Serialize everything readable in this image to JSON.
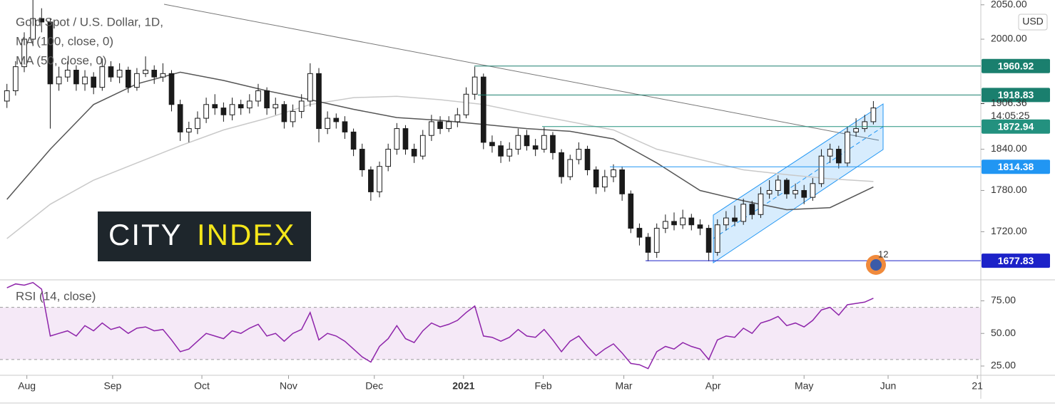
{
  "chart_data": [
    {
      "type": "candlestick",
      "title": "Gold Spot / U.S. Dollar, 1D,",
      "currency": "USD",
      "up_color": "#ffffff",
      "down_color": "#1a1a1a",
      "open": [
        1910,
        1925,
        1960,
        2000,
        2030,
        2025,
        1935,
        1945,
        1955,
        1935,
        1945,
        1930,
        1960,
        1945,
        1955,
        1930,
        1950,
        1955,
        1945,
        1950,
        1905,
        1865,
        1870,
        1885,
        1905,
        1900,
        1890,
        1905,
        1900,
        1910,
        1925,
        1900,
        1905,
        1880,
        1895,
        1910,
        1950,
        1870,
        1885,
        1880,
        1865,
        1840,
        1810,
        1778,
        1815,
        1840,
        1870,
        1840,
        1830,
        1860,
        1880,
        1870,
        1880,
        1890,
        1920,
        1945,
        1850,
        1845,
        1830,
        1840,
        1860,
        1845,
        1840,
        1860,
        1835,
        1800,
        1825,
        1840,
        1810,
        1785,
        1800,
        1810,
        1775,
        1725,
        1712,
        1690,
        1725,
        1735,
        1730,
        1740,
        1730,
        1725,
        1690,
        1730,
        1740,
        1735,
        1760,
        1745,
        1775,
        1780,
        1795,
        1775,
        1780,
        1770,
        1790,
        1830,
        1840,
        1820,
        1865,
        1870,
        1880
      ],
      "high": [
        1935,
        1968,
        2010,
        2068,
        2045,
        2030,
        1960,
        1968,
        1962,
        1955,
        1952,
        1972,
        1968,
        1965,
        1960,
        1958,
        1975,
        1962,
        1965,
        1955,
        1912,
        1880,
        1895,
        1915,
        1920,
        1908,
        1915,
        1912,
        1920,
        1935,
        1930,
        1915,
        1910,
        1905,
        1920,
        1965,
        1958,
        1895,
        1892,
        1888,
        1870,
        1848,
        1815,
        1822,
        1848,
        1878,
        1875,
        1848,
        1868,
        1890,
        1888,
        1888,
        1900,
        1930,
        1960,
        1950,
        1860,
        1852,
        1850,
        1870,
        1868,
        1855,
        1872,
        1865,
        1840,
        1832,
        1850,
        1845,
        1815,
        1810,
        1818,
        1815,
        1780,
        1732,
        1718,
        1732,
        1745,
        1748,
        1752,
        1746,
        1738,
        1730,
        1738,
        1750,
        1758,
        1768,
        1765,
        1785,
        1795,
        1802,
        1798,
        1790,
        1788,
        1798,
        1840,
        1848,
        1845,
        1872,
        1885,
        1890,
        1910
      ],
      "low": [
        1900,
        1918,
        1952,
        1990,
        2010,
        1870,
        1925,
        1938,
        1925,
        1925,
        1920,
        1925,
        1938,
        1936,
        1922,
        1925,
        1945,
        1935,
        1938,
        1895,
        1852,
        1850,
        1862,
        1878,
        1890,
        1880,
        1882,
        1890,
        1892,
        1902,
        1890,
        1890,
        1870,
        1872,
        1885,
        1902,
        1850,
        1862,
        1870,
        1855,
        1830,
        1800,
        1765,
        1770,
        1808,
        1832,
        1832,
        1820,
        1825,
        1852,
        1862,
        1865,
        1872,
        1885,
        1912,
        1840,
        1835,
        1820,
        1822,
        1832,
        1838,
        1830,
        1835,
        1825,
        1790,
        1795,
        1818,
        1802,
        1775,
        1778,
        1792,
        1765,
        1718,
        1700,
        1677,
        1682,
        1718,
        1722,
        1724,
        1722,
        1715,
        1677,
        1685,
        1722,
        1728,
        1730,
        1738,
        1740,
        1768,
        1772,
        1768,
        1768,
        1760,
        1765,
        1785,
        1820,
        1812,
        1815,
        1858,
        1865,
        1876
      ],
      "close": [
        1925,
        1960,
        2000,
        2030,
        2025,
        1935,
        1945,
        1955,
        1935,
        1945,
        1930,
        1960,
        1945,
        1955,
        1930,
        1950,
        1955,
        1945,
        1950,
        1905,
        1865,
        1870,
        1885,
        1905,
        1900,
        1890,
        1905,
        1900,
        1910,
        1925,
        1900,
        1905,
        1880,
        1895,
        1910,
        1950,
        1870,
        1885,
        1880,
        1865,
        1840,
        1810,
        1778,
        1815,
        1840,
        1870,
        1840,
        1830,
        1860,
        1880,
        1870,
        1880,
        1890,
        1920,
        1945,
        1850,
        1845,
        1830,
        1840,
        1860,
        1845,
        1840,
        1860,
        1835,
        1800,
        1825,
        1840,
        1810,
        1785,
        1800,
        1810,
        1775,
        1725,
        1712,
        1690,
        1725,
        1735,
        1730,
        1740,
        1730,
        1725,
        1690,
        1730,
        1740,
        1735,
        1760,
        1745,
        1775,
        1780,
        1795,
        1775,
        1780,
        1770,
        1790,
        1830,
        1840,
        1820,
        1865,
        1870,
        1880,
        1900
      ],
      "series": [
        {
          "name": "MA (100, close, 0)",
          "color": "#c9c9c9",
          "x": [
            0,
            5,
            10,
            15,
            20,
            25,
            30,
            35,
            40,
            45,
            50,
            55,
            60,
            65,
            70,
            75,
            80,
            85,
            90,
            95,
            100
          ],
          "values": [
            1710,
            1760,
            1795,
            1820,
            1845,
            1868,
            1885,
            1905,
            1915,
            1917,
            1912,
            1905,
            1892,
            1880,
            1868,
            1840,
            1825,
            1810,
            1803,
            1797,
            1793
          ]
        },
        {
          "name": "MA (50, close, 0)",
          "color": "#555555",
          "x": [
            0,
            5,
            10,
            15,
            20,
            25,
            30,
            35,
            40,
            45,
            50,
            55,
            60,
            65,
            70,
            75,
            80,
            85,
            90,
            95,
            100
          ],
          "values": [
            1767,
            1840,
            1905,
            1935,
            1952,
            1940,
            1925,
            1912,
            1898,
            1886,
            1882,
            1876,
            1870,
            1866,
            1855,
            1820,
            1780,
            1765,
            1752,
            1755,
            1785
          ]
        }
      ],
      "levels": [
        {
          "value": 1960.92,
          "color": "#1a7f6e"
        },
        {
          "value": 1918.83,
          "color": "#1a7f6e"
        },
        {
          "value": 1872.94,
          "color": "#23917f"
        },
        {
          "value": 1814.38,
          "color": "#2196f3"
        },
        {
          "value": 1677.83,
          "color": "#1c22c8"
        }
      ],
      "last_price": 1906.36,
      "countdown": "14:05:25",
      "icon_label": "12",
      "xlim": [
        -0.8,
        112.4
      ],
      "ylim": [
        1650,
        2057
      ],
      "yticks": [
        {
          "value": 1720,
          "label": "1720.00"
        },
        {
          "value": 1780,
          "label": "1780.00"
        },
        {
          "value": 1840,
          "label": "1840.00"
        },
        {
          "value": 2000,
          "label": "2000.00"
        },
        {
          "value": 2050,
          "label": "2050.00"
        }
      ]
    },
    {
      "type": "line",
      "title": "RSI (14, close)",
      "color": "#8e24aa",
      "values": [
        85,
        88,
        87,
        89,
        84,
        48,
        50,
        52,
        48,
        56,
        52,
        58,
        53,
        55,
        50,
        54,
        55,
        52,
        53,
        45,
        36,
        38,
        44,
        50,
        48,
        46,
        52,
        50,
        54,
        57,
        48,
        50,
        44,
        50,
        53,
        66,
        45,
        50,
        48,
        44,
        38,
        32,
        28,
        40,
        46,
        56,
        46,
        43,
        52,
        58,
        55,
        57,
        60,
        66,
        71,
        48,
        47,
        44,
        47,
        53,
        48,
        47,
        53,
        45,
        36,
        44,
        48,
        40,
        33,
        38,
        42,
        35,
        27,
        26,
        23,
        36,
        40,
        38,
        43,
        40,
        38,
        30,
        45,
        48,
        47,
        54,
        50,
        58,
        60,
        63,
        56,
        58,
        55,
        60,
        68,
        70,
        64,
        72,
        73,
        74,
        77
      ],
      "band": [
        30,
        70
      ],
      "xlim": [
        -0.8,
        112.4
      ],
      "ylim": [
        19,
        90
      ],
      "yticks": [
        {
          "value": 25,
          "label": "25.00"
        },
        {
          "value": 50,
          "label": "50.00"
        },
        {
          "value": 75,
          "label": "75.00"
        }
      ],
      "xticks": [
        {
          "value": 2.3,
          "label": "Aug"
        },
        {
          "value": 12.2,
          "label": "Sep"
        },
        {
          "value": 22.5,
          "label": "Oct"
        },
        {
          "value": 32.5,
          "label": "Nov"
        },
        {
          "value": 42.4,
          "label": "Dec"
        },
        {
          "value": 52.7,
          "label": "2021"
        },
        {
          "value": 61.9,
          "label": "Feb"
        },
        {
          "value": 71.2,
          "label": "Mar"
        },
        {
          "value": 81.5,
          "label": "Apr"
        },
        {
          "value": 92,
          "label": "May"
        },
        {
          "value": 101.7,
          "label": "Jun"
        },
        {
          "value": 112,
          "label": "21"
        }
      ]
    }
  ],
  "logo": {
    "word1": "CITY",
    "word2": "INDEX"
  }
}
